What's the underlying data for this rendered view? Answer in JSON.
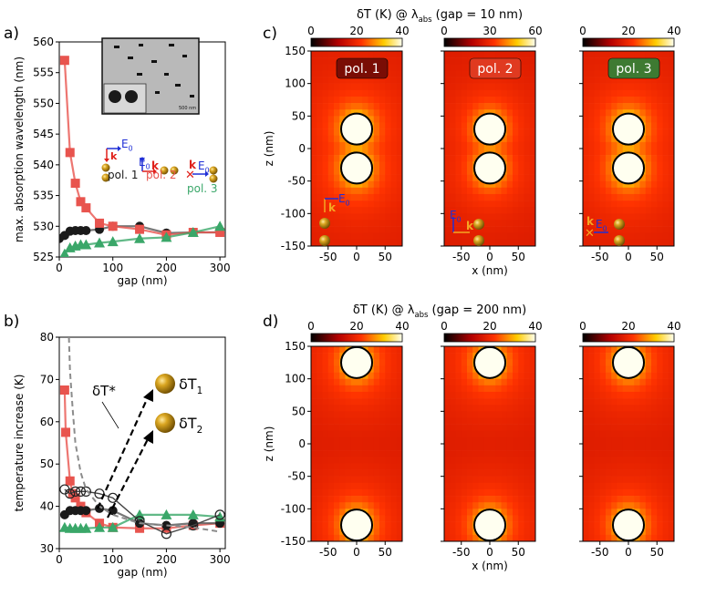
{
  "panels": {
    "a": "a)",
    "b": "b)",
    "c": "c)",
    "d": "d)"
  },
  "colors": {
    "pol1": "#1a1a1a",
    "pol2": "#e8544e",
    "pol3": "#3aa769",
    "dashed": "#8c8c8c",
    "efield": "#1f2fd6",
    "kvector": "#e0201a",
    "particle": "#b8860b"
  },
  "chart_data": [
    {
      "id": "a",
      "type": "line",
      "xlabel": "gap (nm)",
      "ylabel": "max. absorption wavelength (nm)",
      "xlim": [
        0,
        310
      ],
      "ylim": [
        525,
        560
      ],
      "xticks": [
        0,
        100,
        200,
        300
      ],
      "yticks": [
        525,
        530,
        535,
        540,
        545,
        550,
        555,
        560
      ],
      "inset_scale_label": "500 nm",
      "series": [
        {
          "name": "pol. 1",
          "marker": "circle",
          "x": [
            0,
            10,
            20,
            30,
            40,
            50,
            75,
            100,
            150,
            200,
            250,
            300
          ],
          "y": [
            528,
            528.5,
            529.2,
            529.3,
            529.3,
            529.3,
            529.5,
            530,
            530,
            528.9,
            529,
            529
          ]
        },
        {
          "name": "pol. 2",
          "marker": "square",
          "x": [
            10,
            20,
            30,
            40,
            50,
            75,
            100,
            150,
            200,
            250,
            300
          ],
          "y": [
            557,
            542,
            537,
            534,
            533,
            530.5,
            530,
            529.5,
            528.6,
            529,
            529
          ]
        },
        {
          "name": "pol. 3",
          "marker": "triangle",
          "x": [
            10,
            20,
            30,
            40,
            50,
            75,
            100,
            150,
            200,
            250,
            300
          ],
          "y": [
            525.5,
            526.5,
            526.8,
            527,
            527,
            527.3,
            527.5,
            528,
            528.2,
            529,
            530
          ]
        }
      ],
      "legend": [
        {
          "label": "pol. 1",
          "k": "k",
          "e": "E",
          "sub": "0"
        },
        {
          "label": "pol. 2",
          "k": "k",
          "e": "E",
          "sub": "0"
        },
        {
          "label": "pol. 3",
          "k": "k",
          "e": "E",
          "sub": "0"
        }
      ]
    },
    {
      "id": "b",
      "type": "line",
      "xlabel": "gap (nm)",
      "ylabel": "temperature increase (K)",
      "xlim": [
        0,
        310
      ],
      "ylim": [
        30,
        80
      ],
      "xticks": [
        0,
        100,
        200,
        300
      ],
      "yticks": [
        30,
        40,
        50,
        60,
        70,
        80
      ],
      "series": [
        {
          "name": "pol. 2",
          "marker": "square",
          "x": [
            10,
            12,
            20,
            25,
            30,
            40,
            50,
            75,
            100,
            150,
            200,
            250,
            300
          ],
          "y": [
            67.5,
            57.5,
            46,
            43,
            42,
            40,
            38.5,
            36,
            35,
            34.8,
            34.8,
            35.5,
            36
          ]
        },
        {
          "name": "pol. 1",
          "marker": "circle",
          "x": [
            10,
            20,
            30,
            40,
            50,
            75,
            100,
            150,
            200,
            250,
            300
          ],
          "y": [
            38,
            39,
            39,
            39,
            39,
            39.5,
            39,
            36,
            35.5,
            36,
            36
          ]
        },
        {
          "name": "pol. 3",
          "marker": "triangle",
          "x": [
            10,
            20,
            30,
            40,
            50,
            75,
            100,
            150,
            200,
            250,
            300
          ],
          "y": [
            35,
            34.8,
            34.8,
            34.8,
            34.8,
            35,
            35,
            38,
            38,
            38,
            37.5
          ]
        },
        {
          "name": "open",
          "marker": "open-circle",
          "x": [
            10,
            20,
            30,
            40,
            50,
            75,
            100,
            150,
            200,
            250,
            300
          ],
          "y": [
            44,
            43,
            43.5,
            43.5,
            43.5,
            43,
            42,
            36.5,
            33.5,
            35.5,
            38
          ]
        },
        {
          "name": "dashed",
          "marker": "none",
          "x": [
            18,
            20,
            25,
            30,
            40,
            50,
            75,
            100,
            150,
            200,
            250,
            300
          ],
          "y": [
            80,
            72,
            63,
            55,
            48,
            44,
            40,
            38,
            36,
            35.5,
            35,
            34
          ]
        }
      ],
      "annotations": [
        {
          "label": "δT*"
        },
        {
          "label": "δT",
          "sub": "1"
        },
        {
          "label": "δT",
          "sub": "2"
        }
      ]
    },
    {
      "id": "c",
      "type": "heatmap",
      "title": "δT (K) @ λ",
      "title_sub": "abs",
      "title_tail": " (gap = 10 nm)",
      "xlabel": "x (nm)",
      "ylabel": "z (nm)",
      "xlim": [
        -80,
        80
      ],
      "ylim": [
        -150,
        150
      ],
      "xticks": [
        -50,
        0,
        50
      ],
      "yticks": [
        -150,
        -100,
        -50,
        0,
        50,
        100,
        150
      ],
      "maps": [
        {
          "label": "pol. 1",
          "colorbar_ticks": [
            0,
            20,
            40
          ],
          "vmax": 40,
          "peak": 40,
          "badge_color": "#7a0d05",
          "particles": [
            {
              "x": 0,
              "z": 30
            },
            {
              "x": 0,
              "z": -30
            }
          ]
        },
        {
          "label": "pol. 2",
          "colorbar_ticks": [
            0,
            30,
            60
          ],
          "vmax": 60,
          "peak": 55,
          "badge_color": "#e03a20",
          "particles": [
            {
              "x": 0,
              "z": 30
            },
            {
              "x": 0,
              "z": -30
            }
          ]
        },
        {
          "label": "pol. 3",
          "colorbar_ticks": [
            0,
            20,
            40
          ],
          "vmax": 40,
          "peak": 40,
          "badge_color": "#3e7a32",
          "particles": [
            {
              "x": 0,
              "z": 30
            },
            {
              "x": 0,
              "z": -30
            }
          ]
        }
      ]
    },
    {
      "id": "d",
      "type": "heatmap",
      "title": "δT (K) @ λ",
      "title_sub": "abs",
      "title_tail": " (gap = 200 nm)",
      "xlabel": "x (nm)",
      "ylabel": "z (nm)",
      "xlim": [
        -80,
        80
      ],
      "ylim": [
        -150,
        150
      ],
      "xticks": [
        -50,
        0,
        50
      ],
      "yticks": [
        -150,
        -100,
        -50,
        0,
        50,
        100,
        150
      ],
      "maps": [
        {
          "label": "",
          "colorbar_ticks": [
            0,
            20,
            40
          ],
          "vmax": 40,
          "peak": 38,
          "particles": [
            {
              "x": 0,
              "z": 125
            },
            {
              "x": 0,
              "z": -125
            }
          ]
        },
        {
          "label": "",
          "colorbar_ticks": [
            0,
            20,
            40
          ],
          "vmax": 40,
          "peak": 38,
          "particles": [
            {
              "x": 0,
              "z": 125
            },
            {
              "x": 0,
              "z": -125
            }
          ]
        },
        {
          "label": "",
          "colorbar_ticks": [
            0,
            20,
            40
          ],
          "vmax": 40,
          "peak": 38,
          "particles": [
            {
              "x": 0,
              "z": 125
            },
            {
              "x": 0,
              "z": -125
            }
          ]
        }
      ]
    }
  ]
}
